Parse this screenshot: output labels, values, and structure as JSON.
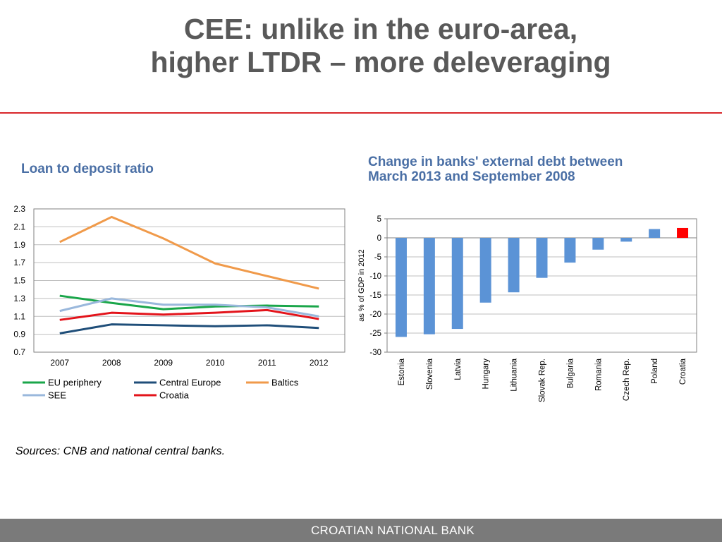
{
  "slide": {
    "title_line1": "CEE: unlike in the euro-area,",
    "title_line2": "higher LTDR – more deleveraging",
    "sources": "Sources: CNB and national central banks.",
    "footer": "CROATIAN NATIONAL BANK",
    "accent_color": "#d9262a",
    "subtitle_color": "#4a6fa5"
  },
  "chart_data": [
    {
      "type": "line",
      "title": "Loan to deposit ratio",
      "x": [
        "2007",
        "2008",
        "2009",
        "2010",
        "2011",
        "2012"
      ],
      "ylim": [
        0.7,
        2.3
      ],
      "yticks": [
        "0.7",
        "0.9",
        "1.1",
        "1.3",
        "1.5",
        "1.7",
        "1.9",
        "2.1",
        "2.3"
      ],
      "grid": true,
      "legend_position": "bottom",
      "series": [
        {
          "name": "EU periphery",
          "color": "#1aa64a",
          "values": [
            1.33,
            1.25,
            1.18,
            1.21,
            1.22,
            1.21
          ]
        },
        {
          "name": "Central Europe",
          "color": "#1f4e79",
          "values": [
            0.91,
            1.01,
            1.0,
            0.99,
            1.0,
            0.97
          ]
        },
        {
          "name": "Baltics",
          "color": "#f09a4a",
          "values": [
            1.93,
            2.21,
            1.97,
            1.69,
            1.55,
            1.41
          ]
        },
        {
          "name": "SEE",
          "color": "#9ab8dc",
          "values": [
            1.16,
            1.3,
            1.23,
            1.23,
            1.2,
            1.1
          ]
        },
        {
          "name": "Croatia",
          "color": "#e3141b",
          "values": [
            1.06,
            1.14,
            1.12,
            1.14,
            1.17,
            1.07
          ]
        }
      ]
    },
    {
      "type": "bar",
      "title": "Change in banks' external debt between March 2013 and September 2008",
      "ylabel": "as % of GDP in 2012",
      "ylim": [
        -30,
        5
      ],
      "yticks": [
        "5",
        "0",
        "-5",
        "-10",
        "-15",
        "-20",
        "-25",
        "-30"
      ],
      "grid": true,
      "categories": [
        "Estonia",
        "Slovenia",
        "Latvia",
        "Hungary",
        "Lithuania",
        "Slovak Rep.",
        "Bulgaria",
        "Romania",
        "Czech Rep.",
        "Poland",
        "Croatia"
      ],
      "values": [
        -26.0,
        -25.3,
        -23.9,
        -17.0,
        -14.3,
        -10.5,
        -6.5,
        -3.1,
        -1.0,
        2.3,
        2.6
      ],
      "colors": [
        "#5b93d6",
        "#5b93d6",
        "#5b93d6",
        "#5b93d6",
        "#5b93d6",
        "#5b93d6",
        "#5b93d6",
        "#5b93d6",
        "#5b93d6",
        "#5b93d6",
        "#ff0000"
      ]
    }
  ]
}
